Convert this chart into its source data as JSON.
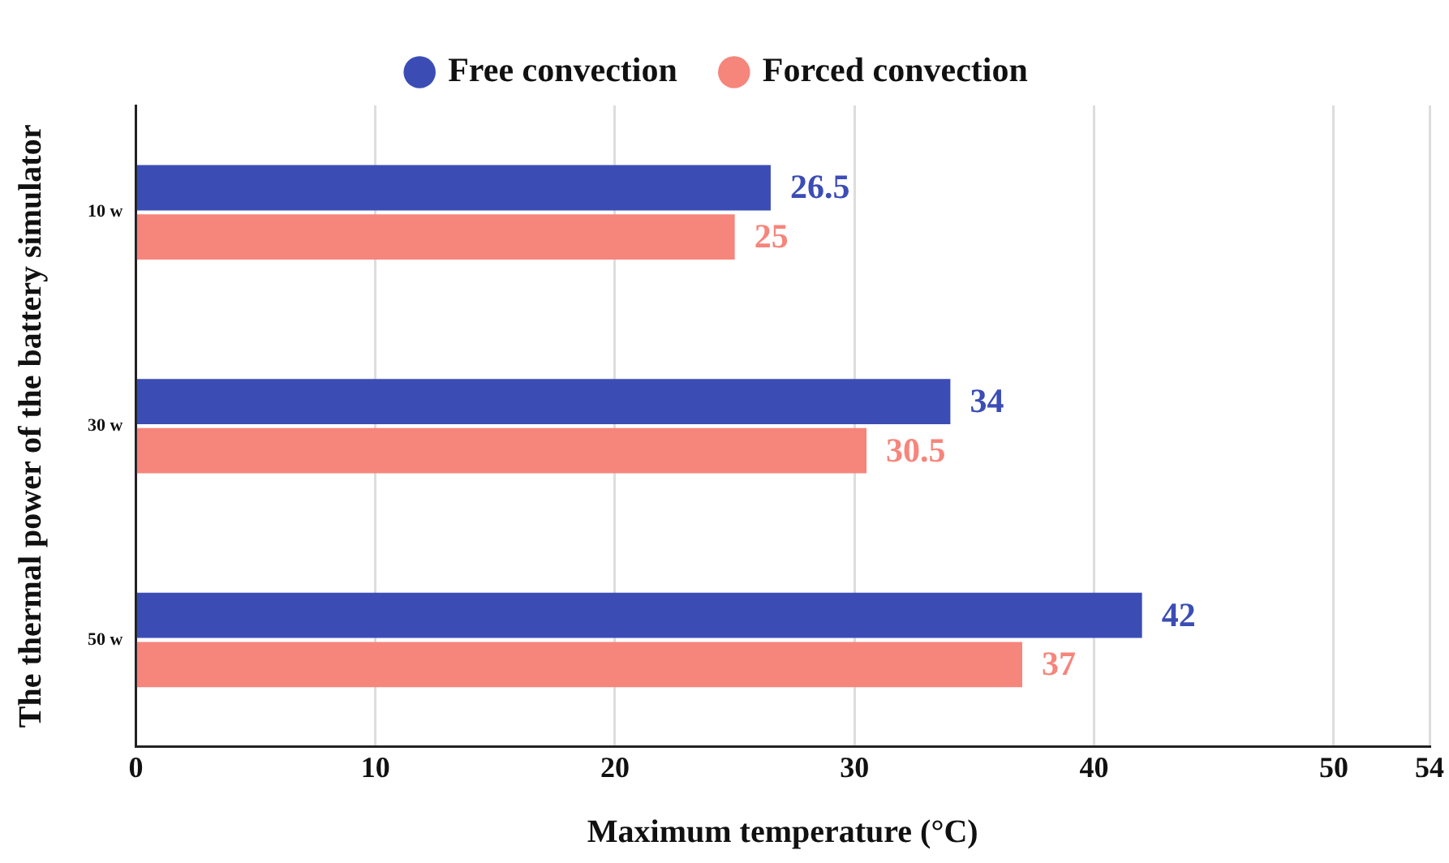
{
  "chart_data": {
    "type": "bar",
    "orientation": "horizontal",
    "xlabel": "Maximum temperature (°C)",
    "ylabel": "The thermal power of the battery simulator",
    "categories": [
      "10 w",
      "30 w",
      "50 w"
    ],
    "series": [
      {
        "name": "Free convection",
        "color": "#3b4db5",
        "values": [
          26.5,
          34,
          42
        ]
      },
      {
        "name": "Forced convection",
        "color": "#f6857b",
        "values": [
          25,
          30.5,
          37
        ]
      }
    ],
    "xlim": [
      0,
      54
    ],
    "xticks": [
      0,
      10,
      20,
      30,
      40,
      50,
      54
    ],
    "grid": "x",
    "legend": "top",
    "data_labels": true
  }
}
